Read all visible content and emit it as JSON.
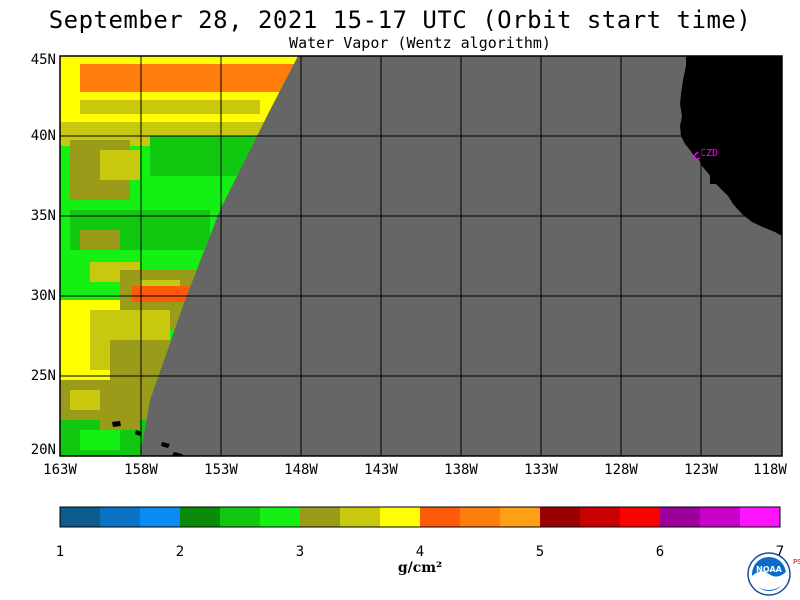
{
  "title": "September 28, 2021  15-17 UTC  (Orbit start time)",
  "subtitle": "Water Vapor (Wentz algorithm)",
  "lat_labels": [
    "45N",
    "40N",
    "35N",
    "30N",
    "25N",
    "20N"
  ],
  "lon_labels": [
    "163W",
    "158W",
    "153W",
    "148W",
    "143W",
    "138W",
    "133W",
    "128W",
    "123W",
    "118W"
  ],
  "station_label": "CZD",
  "colorbar": {
    "labels": [
      "1",
      "2",
      "3",
      "4",
      "5",
      "6",
      "7"
    ],
    "unit": "g/cm²",
    "colors": [
      "#0b5c8a",
      "#0a73c6",
      "#0a8cf5",
      "#0a8c0a",
      "#0fc80f",
      "#14f014",
      "#9b9b1a",
      "#c8c80f",
      "#ffff00",
      "#ff5a0a",
      "#ff7d0a",
      "#ffa014",
      "#9b0000",
      "#c80000",
      "#ff0000",
      "#9b009b",
      "#c800c8",
      "#ff14ff"
    ]
  },
  "colors": {
    "no_data": "#666666",
    "land": "#000000",
    "station": "#ff00ff"
  },
  "logo_text": "NOAA",
  "psl_text": "PSL"
}
